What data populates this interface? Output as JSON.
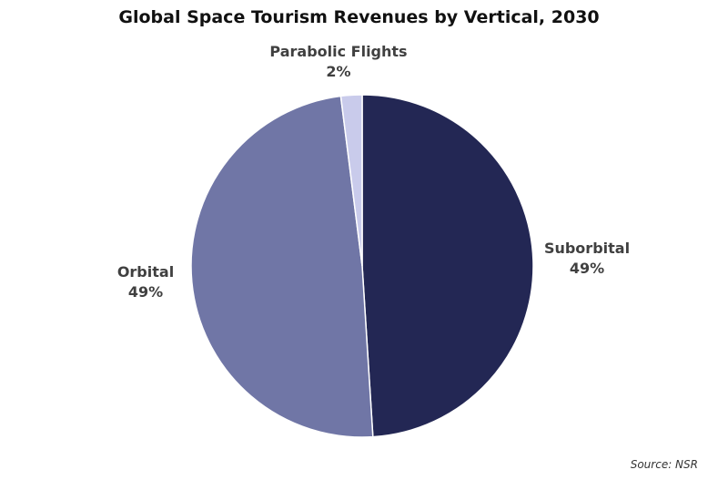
{
  "chart_data": {
    "type": "pie",
    "title": "Global Space Tourism Revenues by Vertical, 2030",
    "slices": [
      {
        "label": "Suborbital",
        "value": 49,
        "value_label": "49%",
        "color": "#232754"
      },
      {
        "label": "Orbital",
        "value": 49,
        "value_label": "49%",
        "color": "#7076a6"
      },
      {
        "label": "Parabolic Flights",
        "value": 2,
        "value_label": "2%",
        "color": "#c9cbeb"
      }
    ],
    "source": "Source: NSR"
  }
}
